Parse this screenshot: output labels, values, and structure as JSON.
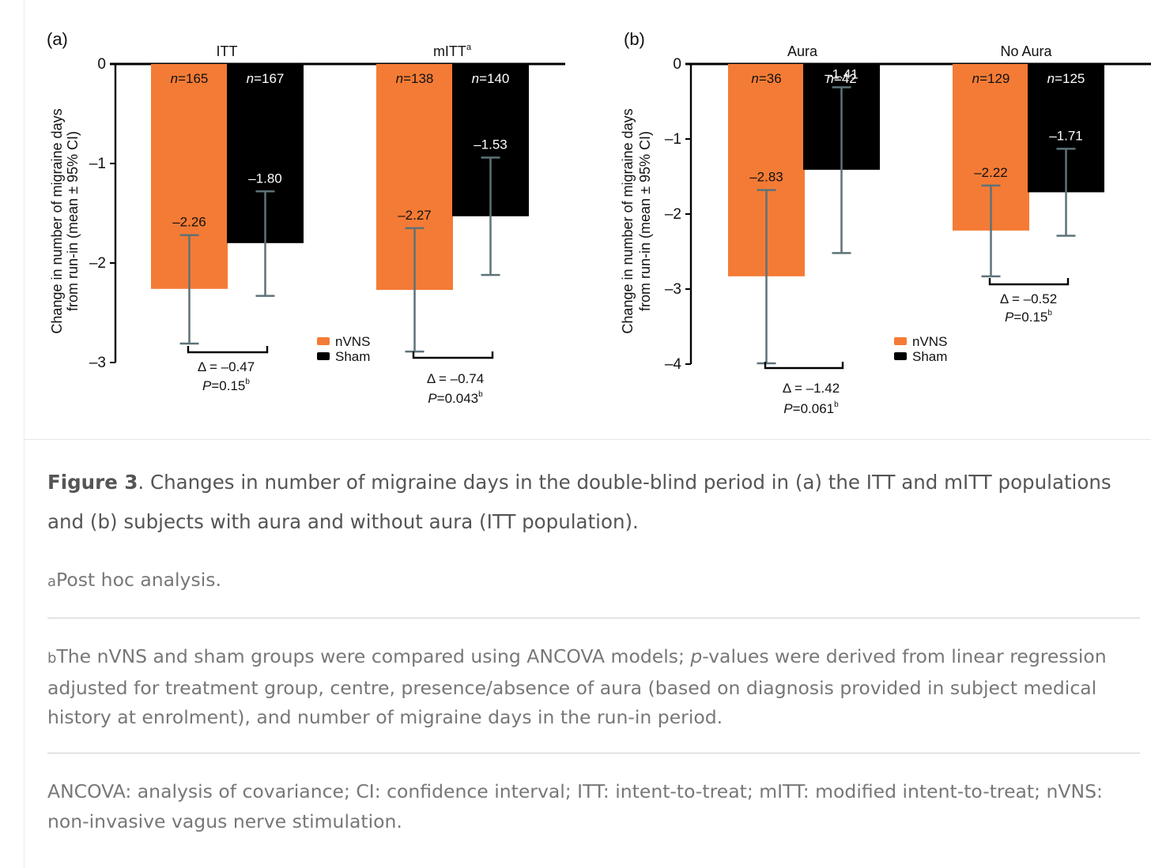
{
  "figure": {
    "caption_label": "Figure 3",
    "caption_text": ". Changes in number of migraine days in the double-blind period in (a) the ITT and mITT populations and (b) subjects with aura and without aura (ITT population).",
    "note_a_marker": "a",
    "note_a_text": "Post hoc analysis.",
    "note_b_marker": "b",
    "note_b_text_1": "The nVNS and sham groups were compared using ANCOVA models; ",
    "note_b_italic": "p",
    "note_b_text_2": "-values were derived from linear regression adjusted for treatment group, centre, presence/absence of aura (based on diagnosis provided in subject medical history at enrolment), and number of migraine days in the run-in period.",
    "abbreviations": "ANCOVA: analysis of covariance; CI: confidence interval; ITT: intent-to-treat; mITT: modified intent-to-treat; nVNS: non-invasive vagus nerve stimulation."
  },
  "colors": {
    "nvns": "#f47b35",
    "sham": "#000000",
    "errorbar": "#5d7278"
  },
  "chart_data": [
    {
      "type": "bar",
      "panel_label": "(a)",
      "ylabel_line1": "Change in number of migraine days",
      "ylabel_line2": "from run-in (mean ± 95% CI)",
      "ylim": [
        -3,
        0
      ],
      "yticks": [
        0,
        -1,
        -2,
        -3
      ],
      "ytick_labels": [
        "0",
        "–1",
        "–2",
        "–3"
      ],
      "legend": [
        "nVNS",
        "Sham"
      ],
      "legend_position": "bottom-center",
      "groups": [
        {
          "name": "ITT",
          "name_sup": "",
          "bars": [
            {
              "series": "nVNS",
              "n_prefix": "n",
              "n_text": "=165",
              "value": -2.26,
              "value_label": "–2.26",
              "ci": [
                -2.81,
                -1.72
              ]
            },
            {
              "series": "Sham",
              "n_prefix": "n",
              "n_text": "=167",
              "value": -1.8,
              "value_label": "–1.80",
              "ci": [
                -2.33,
                -1.28
              ]
            }
          ],
          "delta_label": "Δ = –0.47",
          "p_prefix": "P",
          "p_text": "=0.15",
          "p_sup": "b"
        },
        {
          "name": "mITT",
          "name_sup": "a",
          "bars": [
            {
              "series": "nVNS",
              "n_prefix": "n",
              "n_text": "=138",
              "value": -2.27,
              "value_label": "–2.27",
              "ci": [
                -2.89,
                -1.65
              ]
            },
            {
              "series": "Sham",
              "n_prefix": "n",
              "n_text": "=140",
              "value": -1.53,
              "value_label": "–1.53",
              "ci": [
                -2.12,
                -0.94
              ]
            }
          ],
          "delta_label": "Δ = –0.74",
          "p_prefix": "P",
          "p_text": "=0.043",
          "p_sup": "b"
        }
      ]
    },
    {
      "type": "bar",
      "panel_label": "(b)",
      "ylabel_line1": "Change in number of migraine days",
      "ylabel_line2": "from run-in (mean ± 95% CI)",
      "ylim": [
        -4,
        0
      ],
      "yticks": [
        0,
        -1,
        -2,
        -3,
        -4
      ],
      "ytick_labels": [
        "0",
        "–1",
        "–2",
        "–3",
        "–4"
      ],
      "legend": [
        "nVNS",
        "Sham"
      ],
      "legend_position": "bottom-center",
      "groups": [
        {
          "name": "Aura",
          "name_sup": "",
          "bars": [
            {
              "series": "nVNS",
              "n_prefix": "n",
              "n_text": "=36",
              "value": -2.83,
              "value_label": "–2.83",
              "ci": [
                -3.99,
                -1.68
              ]
            },
            {
              "series": "Sham",
              "n_prefix": "n",
              "n_text": "=42",
              "value": -1.41,
              "value_label": "–1.41",
              "ci": [
                -2.52,
                -0.31
              ]
            }
          ],
          "delta_label": "Δ = –1.42",
          "p_prefix": "P",
          "p_text": "=0.061",
          "p_sup": "b"
        },
        {
          "name": "No Aura",
          "name_sup": "",
          "bars": [
            {
              "series": "nVNS",
              "n_prefix": "n",
              "n_text": "=129",
              "value": -2.22,
              "value_label": "–2.22",
              "ci": [
                -2.83,
                -1.62
              ]
            },
            {
              "series": "Sham",
              "n_prefix": "n",
              "n_text": "=125",
              "value": -1.71,
              "value_label": "–1.71",
              "ci": [
                -2.29,
                -1.13
              ]
            }
          ],
          "delta_label": "Δ = –0.52",
          "p_prefix": "P",
          "p_text": "=0.15",
          "p_sup": "b"
        }
      ]
    }
  ]
}
